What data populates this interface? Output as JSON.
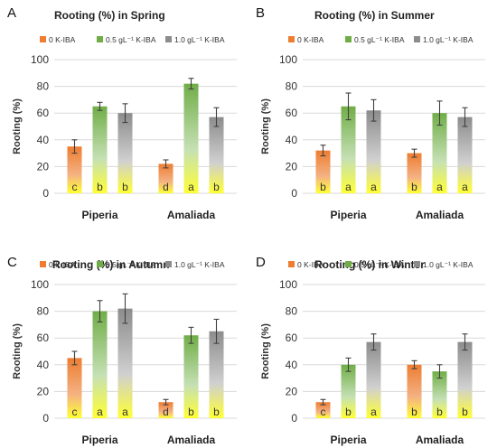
{
  "chart_data": [
    {
      "panel": "A",
      "type": "bar",
      "title": "Rooting (%) in Spring",
      "ylabel": "Rooting (%)",
      "ylim": [
        0,
        100
      ],
      "yticks": [
        0,
        20,
        40,
        60,
        80,
        100
      ],
      "categories": [
        "Piperia",
        "Amaliada"
      ],
      "series": [
        {
          "name": "0 K-IBA",
          "values": [
            35,
            22
          ],
          "errors": [
            5,
            3
          ],
          "letters": [
            "c",
            "d"
          ]
        },
        {
          "name": "0.5 gL⁻¹ K-IBA",
          "values": [
            65,
            82
          ],
          "errors": [
            3,
            4
          ],
          "letters": [
            "b",
            "a"
          ]
        },
        {
          "name": "1.0 gL⁻¹ K-IBA",
          "values": [
            60,
            57
          ],
          "errors": [
            7,
            7
          ],
          "letters": [
            "b",
            "b"
          ]
        }
      ]
    },
    {
      "panel": "B",
      "type": "bar",
      "title": "Rooting (%) in Summer",
      "ylabel": "Rooting (%)",
      "ylim": [
        0,
        100
      ],
      "yticks": [
        0,
        20,
        40,
        60,
        80,
        100
      ],
      "categories": [
        "Piperia",
        "Amaliada"
      ],
      "series": [
        {
          "name": "0 K-IBA",
          "values": [
            32,
            30
          ],
          "errors": [
            4,
            3
          ],
          "letters": [
            "b",
            "b"
          ]
        },
        {
          "name": "0.5 gL⁻¹ K-IBA",
          "values": [
            65,
            60
          ],
          "errors": [
            10,
            9
          ],
          "letters": [
            "a",
            "a"
          ]
        },
        {
          "name": "1.0 gL⁻¹ K-IBA",
          "values": [
            62,
            57
          ],
          "errors": [
            8,
            7
          ],
          "letters": [
            "a",
            "a"
          ]
        }
      ]
    },
    {
      "panel": "C",
      "type": "bar",
      "title": "Rooting (%) in Autumn",
      "ylabel": "Rooting (%)",
      "ylim": [
        0,
        100
      ],
      "yticks": [
        0,
        20,
        40,
        60,
        80,
        100
      ],
      "categories": [
        "Piperia",
        "Amaliada"
      ],
      "series": [
        {
          "name": "0 K-IBA",
          "values": [
            45,
            12
          ],
          "errors": [
            5,
            2
          ],
          "letters": [
            "c",
            "d"
          ]
        },
        {
          "name": "0.5 gL⁻¹ K-IBA",
          "values": [
            80,
            62
          ],
          "errors": [
            8,
            6
          ],
          "letters": [
            "a",
            "b"
          ]
        },
        {
          "name": "1.0 gL⁻¹ K-IBA",
          "values": [
            82,
            65
          ],
          "errors": [
            11,
            9
          ],
          "letters": [
            "a",
            "b"
          ]
        }
      ]
    },
    {
      "panel": "D",
      "type": "bar",
      "title": "Rooting (%) in Winter",
      "ylabel": "Rooting (%)",
      "ylim": [
        0,
        100
      ],
      "yticks": [
        0,
        20,
        40,
        60,
        80,
        100
      ],
      "categories": [
        "Piperia",
        "Amaliada"
      ],
      "series": [
        {
          "name": "0 K-IBA",
          "values": [
            12,
            40
          ],
          "errors": [
            2,
            3
          ],
          "letters": [
            "c",
            "b"
          ]
        },
        {
          "name": "0.5 gL⁻¹ K-IBA",
          "values": [
            40,
            35
          ],
          "errors": [
            5,
            5
          ],
          "letters": [
            "b",
            "b"
          ]
        },
        {
          "name": "1.0 gL⁻¹ K-IBA",
          "values": [
            57,
            57
          ],
          "errors": [
            6,
            6
          ],
          "letters": [
            "a",
            "b"
          ]
        }
      ]
    }
  ],
  "colors": {
    "series_top": [
      "#ed7d31",
      "#70ad47",
      "#8c8c8c"
    ],
    "series_mid": [
      "#f4b183",
      "#c5e0b4",
      "#d0d0d0"
    ],
    "base_yellow": "#ffff33",
    "grid": "#d9d9d9",
    "text": "#333333"
  }
}
